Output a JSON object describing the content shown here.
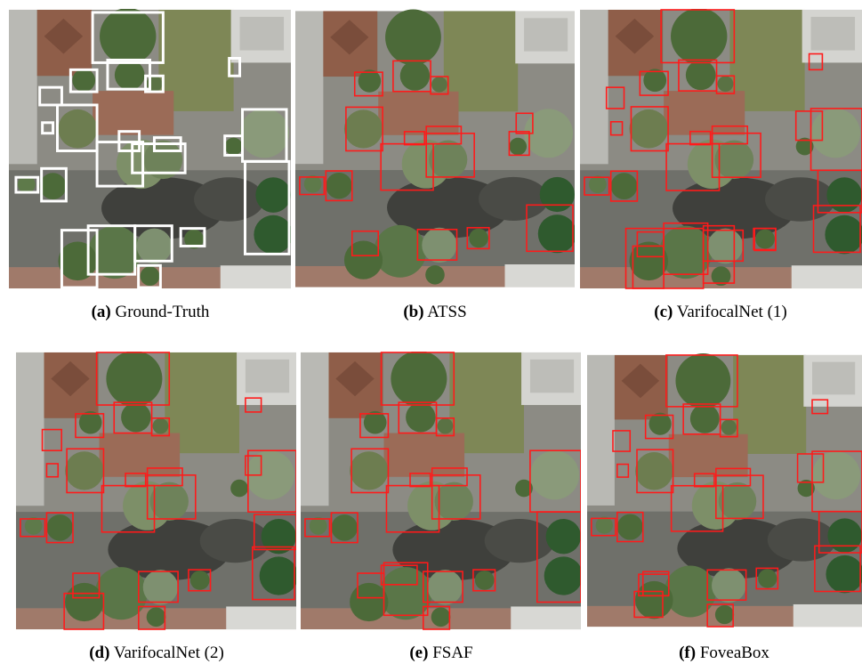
{
  "figure": {
    "panels": [
      {
        "tag": "(a)",
        "label": "Ground-Truth"
      },
      {
        "tag": "(b)",
        "label": "ATSS"
      },
      {
        "tag": "(c)",
        "label": "VarifocalNet (1)"
      },
      {
        "tag": "(d)",
        "label": "VarifocalNet (2)"
      },
      {
        "tag": "(e)",
        "label": "FSAF"
      },
      {
        "tag": "(f)",
        "label": "FoveaBox"
      }
    ]
  }
}
